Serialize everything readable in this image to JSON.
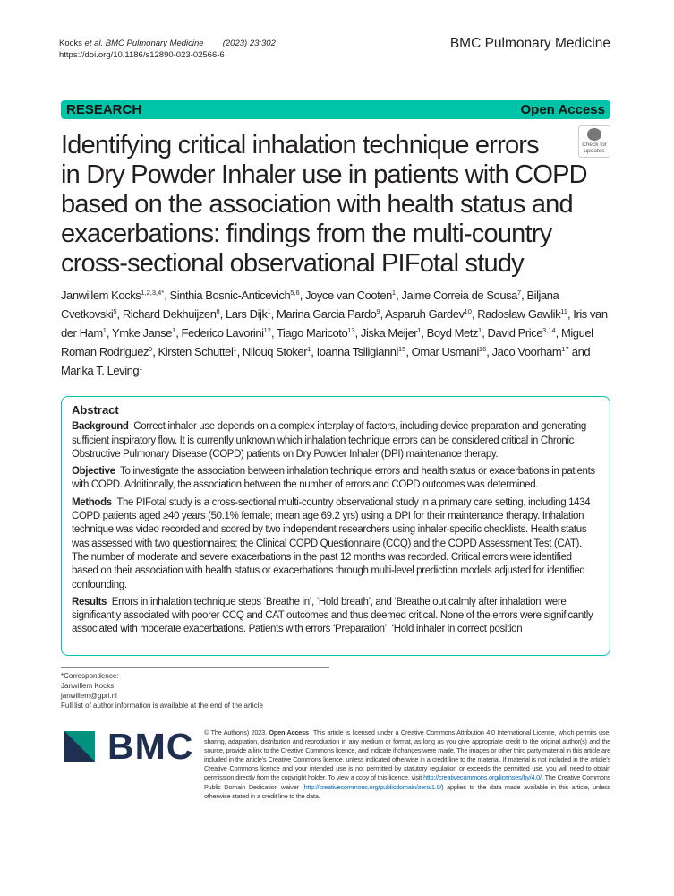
{
  "header": {
    "citation_authors": "Kocks ",
    "citation_etal": "et al.",
    "citation_journal": " BMC Pulmonary Medicine",
    "citation_year": "(2023) 23:302",
    "doi": "https://doi.org/10.1186/s12890-023-02566-6",
    "journal": "BMC Pulmonary Medicine"
  },
  "banner": {
    "type": "RESEARCH",
    "access": "Open Access",
    "accent": "#00c4a7"
  },
  "title": "Identifying critical inhalation technique errors in Dry Powder Inhaler use in patients with COPD based on the association with health status and exacerbations: findings from the multi-country cross-sectional observational PIFotal study",
  "check_updates": {
    "line1": "Check for",
    "line2": "updates"
  },
  "authors": [
    [
      "Janwillem Kocks",
      "1,2,3,4*"
    ],
    [
      "Sinthia Bosnic-Anticevich",
      "5,6"
    ],
    [
      "Joyce van Cooten",
      "1"
    ],
    [
      "Jaime Correia de Sousa",
      "7"
    ],
    [
      "Biljana Cvetkovski",
      "5"
    ],
    [
      "Richard Dekhuijzen",
      "8"
    ],
    [
      "Lars Dijk",
      "1"
    ],
    [
      "Marina Garcia Pardo",
      "9"
    ],
    [
      "Asparuh Gardev",
      "10"
    ],
    [
      "Radosław Gawlik",
      "11"
    ],
    [
      "Iris van der Ham",
      "1"
    ],
    [
      "Ymke Janse",
      "1"
    ],
    [
      "Federico Lavorini",
      "12"
    ],
    [
      "Tiago Maricoto",
      "13"
    ],
    [
      "Jiska Meijer",
      "1"
    ],
    [
      "Boyd Metz",
      "1"
    ],
    [
      "David Price",
      "3,14"
    ],
    [
      "Miguel Roman Rodriguez",
      "9"
    ],
    [
      "Kirsten Schuttel",
      "1"
    ],
    [
      "Nilouq Stoker",
      "1"
    ],
    [
      "Ioanna Tsiligianni",
      "15"
    ],
    [
      "Omar Usmani",
      "16"
    ],
    [
      "Jaco Voorham",
      "17"
    ],
    [
      "Marika T. Leving",
      "1"
    ]
  ],
  "abstract": {
    "heading": "Abstract",
    "sections": [
      {
        "label": "Background",
        "text": "Correct inhaler use depends on a complex interplay of factors, including device preparation and generating sufficient inspiratory flow. It is currently unknown which inhalation technique errors can be considered critical in Chronic Obstructive Pulmonary Disease (COPD) patients on Dry Powder Inhaler (DPI) maintenance therapy."
      },
      {
        "label": "Objective",
        "text": "To investigate the association between inhalation technique errors and health status or exacerbations in patients with COPD. Additionally, the association between the number of errors and COPD outcomes was determined."
      },
      {
        "label": "Methods",
        "text": "The PIFotal study is a cross-sectional multi-country observational study in a primary care setting, including 1434 COPD patients aged ≥40 years (50.1% female; mean age 69.2 yrs) using a DPI for their maintenance therapy. Inhalation technique was video recorded and scored by two independent researchers using inhaler-specific checklists. Health status was assessed with two questionnaires; the Clinical COPD Questionnaire (CCQ) and the COPD Assessment Test (CAT). The number of moderate and severe exacerbations in the past 12 months was recorded. Critical errors were identified based on their association with health status or exacerbations through multi-level prediction models adjusted for identified confounding."
      },
      {
        "label": "Results",
        "text": "Errors in inhalation technique steps ‘Breathe in’, ‘Hold breath’, and ‘Breathe out calmly after inhalation’ were significantly associated with poorer CCQ and CAT outcomes and thus deemed critical. None of the errors were significantly associated with moderate exacerbations. Patients with errors ‘Preparation’, ‘Hold inhaler in correct position"
      }
    ]
  },
  "footnote": {
    "l1": "*Correspondence:",
    "l2": "Janwillem Kocks",
    "l3": "janwillem@gpri.nl",
    "l4": "Full list of author information is available at the end of the article"
  },
  "logo": "BMC",
  "license": {
    "copyright": "© The Author(s) 2023.",
    "open_access": "Open Access",
    "text1": "This article is licensed under a Creative Commons Attribution 4.0 International License, which permits use, sharing, adaptation, distribution and reproduction in any medium or format, as long as you give appropriate credit to the original author(s) and the source, provide a link to the Creative Commons licence, and indicate if changes were made. The images or other third party material in this article are included in the article’s Creative Commons licence, unless indicated otherwise in a credit line to the material. If material is not included in the article’s Creative Commons licence and your intended use is not permitted by statutory regulation or exceeds the permitted use, you will need to obtain permission directly from the copyright holder. To view a copy of this licence, visit",
    "link1": "http://creativecommons.org/licenses/by/4.0/",
    "text2": ". The Creative Commons Public Domain Dedication waiver (",
    "link2": "http://creativecommons.org/publicdomain/zero/1.0/",
    "text3": ") applies to the data made available in this article, unless otherwise stated in a credit line to the data."
  }
}
